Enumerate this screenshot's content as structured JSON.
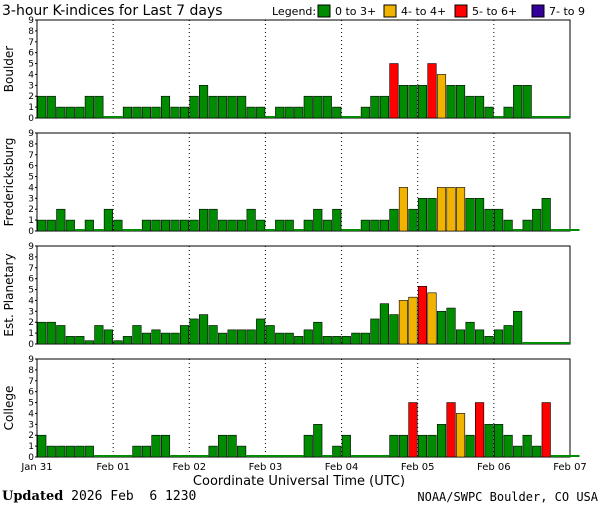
{
  "title": "3-hour K-indices for Last 7 days",
  "legend": {
    "label": "Legend:",
    "items": [
      {
        "text": "0 to 3+",
        "color": "#008c00"
      },
      {
        "text": "4- to 4+",
        "color": "#f0b400"
      },
      {
        "text": "5- to 6+",
        "color": "#ff0000"
      },
      {
        "text": "7- to 9",
        "color": "#330099"
      }
    ]
  },
  "chart_data": {
    "type": "bar",
    "title": "3-hour K-indices for Last 7 days",
    "xlabel": "Coordinate Universal Time (UTC)",
    "x_ticks": [
      "Jan 31",
      "Feb 01",
      "Feb 02",
      "Feb 03",
      "Feb 04",
      "Feb 05",
      "Feb 06",
      "Feb 07"
    ],
    "yticks": [
      "0",
      "1",
      "2",
      "3",
      "4",
      "5",
      "6",
      "7",
      "8",
      "9"
    ],
    "ylim": [
      0,
      9
    ],
    "color_scale": {
      "0-3": "#008c00",
      "4": "#f0b400",
      "5-6": "#ff0000",
      "7-9": "#330099"
    },
    "panels": [
      {
        "station": "Boulder",
        "values": [
          2,
          2,
          1,
          1,
          1,
          2,
          2,
          0,
          0,
          1,
          1,
          1,
          1,
          2,
          1,
          1,
          2,
          3,
          2,
          2,
          2,
          2,
          1,
          1,
          0,
          1,
          1,
          1,
          2,
          2,
          2,
          1,
          0,
          0,
          1,
          2,
          2,
          5,
          3,
          3,
          3,
          5,
          4,
          3,
          3,
          2,
          2,
          1,
          0,
          1,
          3,
          3,
          0,
          0,
          0,
          0
        ]
      },
      {
        "station": "Fredericksburg",
        "values": [
          1,
          1,
          2,
          1,
          0,
          1,
          0,
          2,
          1,
          0,
          0,
          1,
          1,
          1,
          1,
          1,
          1,
          2,
          2,
          1,
          1,
          1,
          2,
          1,
          0,
          1,
          1,
          0,
          1,
          2,
          1,
          2,
          0,
          0,
          1,
          1,
          1,
          2,
          4,
          2,
          3,
          3,
          4,
          4,
          4,
          3,
          3,
          2,
          2,
          1,
          0,
          1,
          2,
          3,
          0,
          0,
          0
        ]
      },
      {
        "station": "Est. Planetary",
        "values": [
          2,
          2,
          1.7,
          0.7,
          0.7,
          0.3,
          1.7,
          1.3,
          0.3,
          0.7,
          1.7,
          1,
          1.3,
          1,
          1,
          1.7,
          2.3,
          2.7,
          1.7,
          1,
          1.3,
          1.3,
          1.3,
          2.3,
          1.7,
          1,
          1,
          0.7,
          1.3,
          2,
          0.7,
          0.7,
          0.7,
          1,
          1,
          2.3,
          3.7,
          2.7,
          4,
          4.3,
          5.3,
          4.7,
          3,
          3.3,
          1.3,
          2,
          1.3,
          0.7,
          1.3,
          1.7,
          3,
          0,
          0,
          0,
          0,
          0
        ]
      },
      {
        "station": "College",
        "values": [
          2,
          1,
          1,
          1,
          1,
          1,
          0,
          0,
          0,
          0,
          1,
          1,
          2,
          2,
          0,
          0,
          0,
          0,
          1,
          2,
          2,
          1,
          0,
          0,
          0,
          0,
          0,
          0,
          2,
          3,
          0,
          1,
          2,
          0,
          0,
          0,
          0,
          2,
          2,
          5,
          2,
          2,
          3,
          5,
          4,
          2,
          5,
          3,
          3,
          2,
          1,
          2,
          1,
          5,
          0,
          0,
          0
        ]
      }
    ]
  },
  "footer": {
    "updated_label": "Updated",
    "updated_value": "2026 Feb  6 1230",
    "credit": "NOAA/SWPC Boulder, CO USA"
  }
}
